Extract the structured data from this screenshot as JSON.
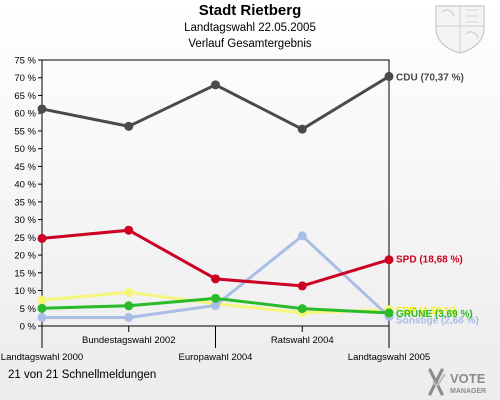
{
  "header": {
    "title": "Stadt Rietberg",
    "subtitle": "Landtagswahl 22.05.2005",
    "subtitle2": "Verlauf Gesamtergebnis"
  },
  "footer": {
    "text": "21 von 21 Schnellmeldungen"
  },
  "logo": {
    "line1": "VOTE",
    "line2": "MANAGER"
  },
  "chart_data": {
    "type": "line",
    "title": "Stadt Rietberg",
    "x": [
      "Landtagswahl 2000",
      "Bundestagswahl 2002",
      "Europawahl 2004",
      "Ratswahl 2004",
      "Landtagswahl 2005"
    ],
    "ylim": [
      0,
      75
    ],
    "yticks": [
      "0 %",
      "5 %",
      "10 %",
      "15 %",
      "20 %",
      "25 %",
      "30 %",
      "35 %",
      "40 %",
      "45 %",
      "50 %",
      "55 %",
      "60 %",
      "65 %",
      "70 %",
      "75 %"
    ],
    "grid": false,
    "series": [
      {
        "name": "FDP",
        "label": "FDP (4,58 %)",
        "color": "#f2f200",
        "line_color": "#f6f67a",
        "values": [
          7.3,
          9.5,
          6.3,
          3.7,
          4.58
        ]
      },
      {
        "name": "Sonstige",
        "label": "Sonstige (2,68 %)",
        "color": "#a9bde6",
        "line_color": "#a9bde6",
        "values": [
          2.4,
          2.4,
          5.8,
          25.4,
          2.68
        ]
      },
      {
        "name": "GRÜNE",
        "label": "GRÜNE (3,69 %)",
        "color": "#2aba2a",
        "line_color": "#2aba2a",
        "values": [
          5.0,
          5.7,
          7.8,
          4.9,
          3.69
        ]
      },
      {
        "name": "SPD",
        "label": "SPD (18,68 %)",
        "color": "#cc0022",
        "line_color": "#cc0022",
        "values": [
          24.7,
          27.0,
          13.3,
          11.3,
          18.68
        ]
      },
      {
        "name": "CDU",
        "label": "CDU (70,37 %)",
        "color": "#4a4a4a",
        "line_color": "#4a4a4a",
        "values": [
          61.2,
          56.3,
          68.0,
          55.5,
          70.37
        ]
      }
    ]
  }
}
